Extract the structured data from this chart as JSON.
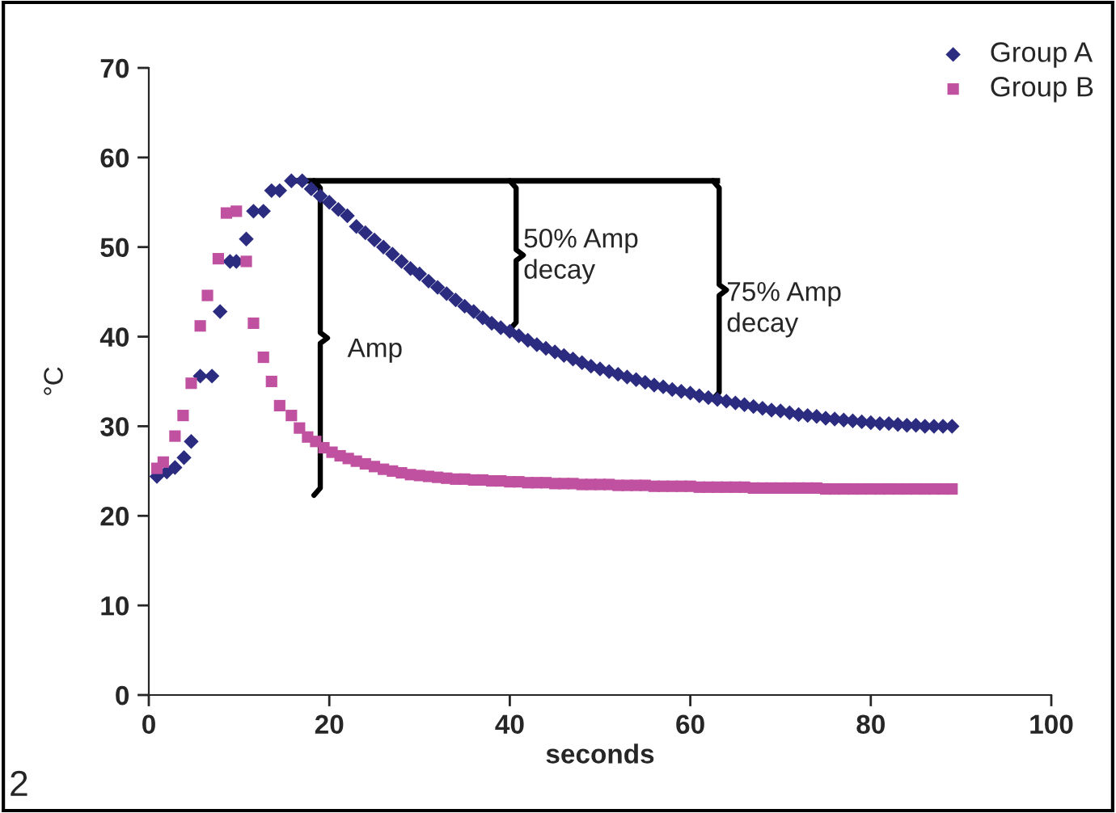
{
  "chart_data": {
    "type": "scatter",
    "xlabel": "seconds",
    "ylabel": "°C",
    "xlim": [
      0,
      100
    ],
    "xticks": [
      0,
      20,
      40,
      60,
      80,
      100
    ],
    "ylim": [
      0,
      70
    ],
    "yticks": [
      0,
      10,
      20,
      30,
      40,
      50,
      60,
      70
    ],
    "grid": false,
    "legend": "top right",
    "series": [
      {
        "name": "Group A",
        "color": "#2b2b80",
        "marker": "diamond",
        "x": [
          0.9,
          2,
          2.9,
          3.9,
          4.7,
          5.7,
          7,
          7.9,
          9,
          9.7,
          10.8,
          11.6,
          12.7,
          13.6,
          14.5,
          15.8,
          17,
          18,
          19,
          20,
          21,
          22,
          23,
          24,
          25,
          26,
          27,
          28,
          29,
          30,
          31,
          32,
          33,
          34,
          35,
          36,
          37,
          38,
          39,
          40,
          41,
          42,
          43,
          44,
          45,
          46,
          47,
          48,
          49,
          50,
          51,
          52,
          53,
          54,
          55,
          56,
          57,
          58,
          59,
          60,
          61,
          62,
          63,
          64,
          65,
          66,
          67,
          68,
          69,
          70,
          71,
          72,
          73,
          74,
          75,
          76,
          77,
          78,
          79,
          80,
          81,
          82,
          83,
          84,
          85,
          86,
          87,
          88,
          89
        ],
        "values": [
          24.4,
          24.9,
          25.4,
          26.5,
          28.3,
          35.6,
          35.6,
          42.8,
          48.4,
          48.4,
          50.9,
          54,
          54,
          56.3,
          56.3,
          57.4,
          57.4,
          56.5,
          55.7,
          55,
          54.2,
          53.5,
          52.3,
          51.6,
          50.8,
          50,
          49.2,
          48.4,
          47.6,
          47,
          46.2,
          45.5,
          44.8,
          44.1,
          43.4,
          42.8,
          42.1,
          41.5,
          41,
          40.6,
          40.1,
          39.6,
          39.1,
          38.7,
          38.3,
          37.9,
          37.5,
          37.1,
          36.7,
          36.4,
          36.1,
          35.8,
          35.5,
          35.2,
          34.9,
          34.6,
          34.4,
          34.1,
          33.9,
          33.7,
          33.4,
          33.2,
          33,
          32.8,
          32.6,
          32.4,
          32.2,
          32,
          31.8,
          31.7,
          31.5,
          31.3,
          31.2,
          31.1,
          30.9,
          30.8,
          30.7,
          30.6,
          30.5,
          30.4,
          30.3,
          30.3,
          30.2,
          30.1,
          30.1,
          30,
          30,
          30,
          30
        ]
      },
      {
        "name": "Group B",
        "color": "#c050a0",
        "marker": "square",
        "x": [
          0.9,
          1.6,
          2.9,
          3.8,
          4.7,
          5.7,
          6.5,
          7.7,
          8.6,
          9.7,
          10.8,
          11.6,
          12.7,
          13.6,
          14.5,
          15.8,
          16.7,
          17.6,
          18.5,
          19.4,
          20.3,
          21.2,
          22.1,
          23,
          24,
          25,
          26,
          27,
          28,
          29,
          30,
          31,
          32,
          33,
          34,
          35,
          36,
          37,
          38,
          39,
          40,
          41,
          42,
          43,
          44,
          45,
          46,
          47,
          48,
          49,
          50,
          51,
          52,
          53,
          54,
          55,
          56,
          57,
          58,
          59,
          60,
          61,
          62,
          63,
          64,
          65,
          66,
          67,
          68,
          69,
          70,
          71,
          72,
          73,
          74,
          75,
          76,
          77,
          78,
          79,
          80,
          81,
          82,
          83,
          84,
          85,
          86,
          87,
          88,
          89
        ],
        "values": [
          25.3,
          26,
          28.9,
          31.2,
          34.8,
          41.2,
          44.6,
          48.7,
          53.8,
          54,
          48.4,
          41.5,
          37.7,
          35,
          32.3,
          31.2,
          29.8,
          28.8,
          28.3,
          27.6,
          27.1,
          26.7,
          26.4,
          26.1,
          25.8,
          25.5,
          25.2,
          25,
          24.8,
          24.6,
          24.5,
          24.4,
          24.3,
          24.2,
          24.1,
          24.1,
          24,
          24,
          23.9,
          23.9,
          23.8,
          23.8,
          23.7,
          23.7,
          23.7,
          23.6,
          23.6,
          23.6,
          23.5,
          23.5,
          23.5,
          23.5,
          23.4,
          23.4,
          23.4,
          23.4,
          23.3,
          23.3,
          23.3,
          23.3,
          23.3,
          23.2,
          23.2,
          23.2,
          23.2,
          23.2,
          23.2,
          23.1,
          23.1,
          23.1,
          23.1,
          23.1,
          23.1,
          23.1,
          23.1,
          23,
          23,
          23,
          23,
          23,
          23,
          23,
          23,
          23,
          23,
          23,
          23,
          23,
          23,
          23
        ]
      }
    ],
    "annotations": [
      "Amp",
      "50% Amp\ndecay",
      "75% Amp\ndecay",
      "2"
    ],
    "ref_lines": [
      {
        "axis": "y",
        "value": 57.4,
        "color": "#000000"
      }
    ]
  }
}
